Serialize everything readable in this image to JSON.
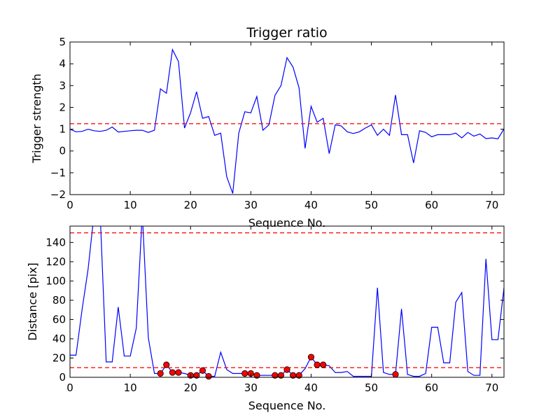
{
  "chart_data": [
    {
      "type": "line",
      "title": "Trigger ratio",
      "xlabel": "Sequence No.",
      "ylabel": "Trigger strength",
      "xlim": [
        0,
        72
      ],
      "ylim": [
        -2,
        5
      ],
      "xticks": [
        0,
        10,
        20,
        30,
        40,
        50,
        60,
        70
      ],
      "yticks": [
        -2,
        -1,
        0,
        1,
        2,
        3,
        4,
        5
      ],
      "grid": false,
      "series_color": "#0000ff",
      "threshold_color": "#ff0000",
      "thresholds": [
        1.25
      ],
      "x": [
        0,
        1,
        2,
        3,
        4,
        5,
        6,
        7,
        8,
        9,
        10,
        11,
        12,
        13,
        14,
        15,
        16,
        17,
        18,
        19,
        20,
        21,
        22,
        23,
        24,
        25,
        26,
        27,
        28,
        29,
        30,
        31,
        32,
        33,
        34,
        35,
        36,
        37,
        38,
        39,
        40,
        41,
        42,
        43,
        44,
        45,
        46,
        47,
        48,
        49,
        50,
        51,
        52,
        53,
        54,
        55,
        56,
        57,
        58,
        59,
        60,
        61,
        62,
        63,
        64,
        65,
        66,
        67,
        68,
        69,
        70,
        71,
        72
      ],
      "y": [
        1.0,
        0.88,
        0.9,
        1.0,
        0.93,
        0.9,
        0.95,
        1.1,
        0.87,
        0.9,
        0.93,
        0.95,
        0.95,
        0.85,
        0.95,
        2.85,
        2.65,
        4.65,
        4.1,
        1.05,
        1.75,
        2.72,
        1.5,
        1.58,
        0.72,
        0.82,
        -1.18,
        -1.95,
        0.82,
        1.8,
        1.75,
        2.5,
        0.95,
        1.2,
        2.55,
        3.0,
        4.28,
        3.85,
        2.9,
        0.12,
        2.05,
        1.32,
        1.5,
        -0.12,
        1.2,
        1.15,
        0.88,
        0.8,
        0.88,
        1.05,
        1.2,
        0.72,
        1.0,
        0.72,
        2.57,
        0.75,
        0.75,
        -0.55,
        0.93,
        0.85,
        0.65,
        0.75,
        0.75,
        0.75,
        0.82,
        0.6,
        0.85,
        0.68,
        0.78,
        0.57,
        0.6,
        0.56,
        1.02
      ]
    },
    {
      "type": "line",
      "xlabel": "Sequence No.",
      "ylabel": "Distance [pix]",
      "xlim": [
        0,
        72
      ],
      "ylim": [
        0,
        157
      ],
      "xticks": [
        0,
        10,
        20,
        30,
        40,
        50,
        60,
        70
      ],
      "yticks": [
        0,
        20,
        40,
        60,
        80,
        100,
        120,
        140
      ],
      "grid": false,
      "series_color": "#0000ff",
      "threshold_color": "#ff0000",
      "marker_color": "#ff0000",
      "thresholds": [
        10,
        150
      ],
      "x": [
        0,
        1,
        2,
        3,
        4,
        5,
        6,
        7,
        8,
        9,
        10,
        11,
        12,
        13,
        14,
        15,
        16,
        17,
        18,
        19,
        20,
        21,
        22,
        23,
        24,
        25,
        26,
        27,
        28,
        29,
        30,
        31,
        32,
        33,
        34,
        35,
        36,
        37,
        38,
        39,
        40,
        41,
        42,
        43,
        44,
        45,
        46,
        47,
        48,
        49,
        50,
        51,
        52,
        53,
        54,
        55,
        56,
        57,
        58,
        59,
        60,
        61,
        62,
        63,
        64,
        65,
        66,
        67,
        68,
        69,
        70,
        71,
        72
      ],
      "y": [
        23,
        23,
        70,
        112,
        170,
        170,
        16,
        16,
        73,
        22,
        22,
        51,
        170,
        41,
        4,
        4,
        13,
        5,
        5,
        4,
        2,
        2,
        7,
        1,
        1,
        26,
        8,
        4,
        4,
        4,
        4,
        2,
        2,
        2,
        2,
        2,
        8,
        2,
        2,
        9,
        21,
        13,
        13,
        12,
        5,
        5,
        6,
        1,
        1,
        1,
        1,
        93,
        5,
        3,
        3,
        71,
        3,
        1,
        1,
        4,
        52,
        52,
        15,
        15,
        78,
        88,
        6,
        2,
        2,
        123,
        39,
        39,
        93
      ],
      "marker_x": [
        15,
        16,
        17,
        18,
        20,
        21,
        22,
        23,
        29,
        30,
        31,
        34,
        35,
        36,
        37,
        38,
        40,
        41,
        42,
        54
      ],
      "marker_y": [
        4,
        13,
        5,
        5,
        2,
        2,
        7,
        1,
        4,
        4,
        2,
        2,
        2,
        8,
        2,
        2,
        21,
        13,
        13,
        3
      ]
    }
  ]
}
